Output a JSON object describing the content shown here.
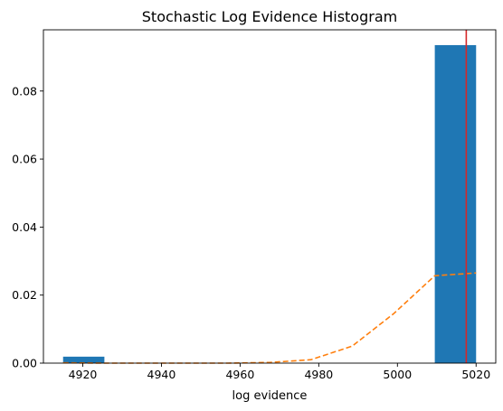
{
  "chart_data": {
    "type": "bar",
    "title": "Stochastic Log Evidence Histogram",
    "xlabel": "log evidence",
    "ylabel": "",
    "xlim": [
      4910,
      5025
    ],
    "ylim": [
      0,
      0.098
    ],
    "x_ticks": [
      4920,
      4940,
      4960,
      4980,
      5000,
      5020
    ],
    "y_ticks": [
      0.0,
      0.02,
      0.04,
      0.06,
      0.08
    ],
    "y_tick_labels": [
      "0.00",
      "0.02",
      "0.04",
      "0.06",
      "0.08"
    ],
    "grid": false,
    "histogram_bins": [
      {
        "x0": 4915,
        "x1": 4925.5,
        "density": 0.0019
      },
      {
        "x0": 5009.5,
        "x1": 5020,
        "density": 0.0935
      }
    ],
    "density_curve": {
      "style": "dashed",
      "x": [
        4915,
        4925.5,
        4936,
        4946.5,
        4957,
        4967.5,
        4978,
        4988.5,
        4999,
        5009.5,
        5020
      ],
      "y": [
        0.0001,
        0.0,
        0.0,
        0.0,
        0.0,
        0.0002,
        0.001,
        0.005,
        0.0145,
        0.0257,
        0.0265
      ]
    },
    "reference_line": {
      "x": 5017.5
    }
  },
  "colors": {
    "bar": "#1f77b4",
    "curve": "#ff7f0e",
    "reference_line": "#d62728",
    "axes": "#000000"
  }
}
